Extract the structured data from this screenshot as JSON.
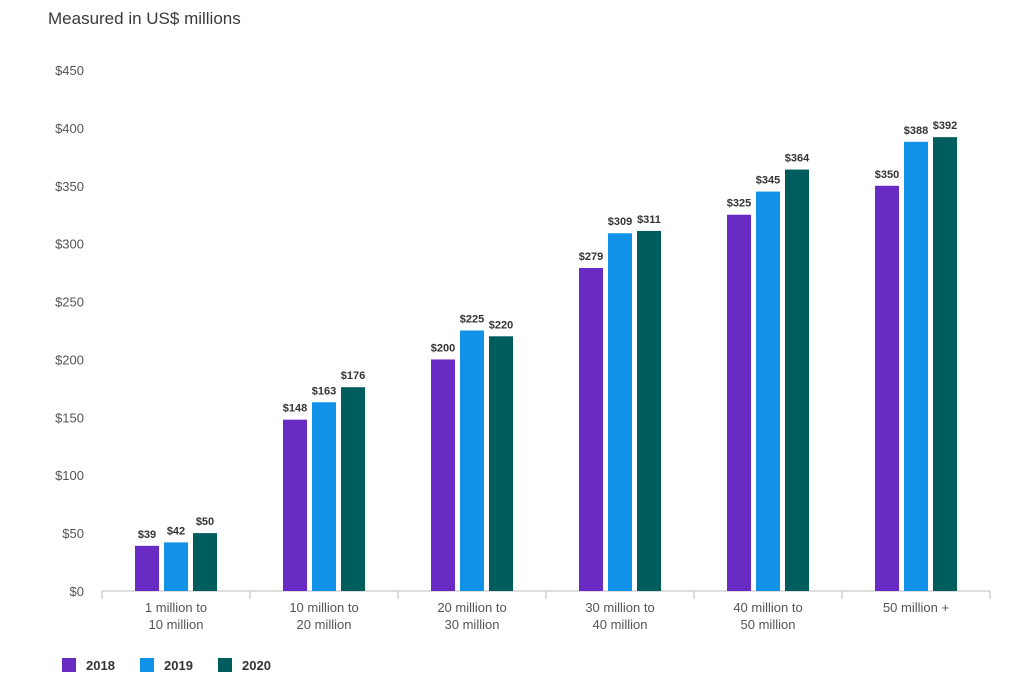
{
  "chart_data": {
    "type": "bar",
    "subtitle": "Measured in US$ millions",
    "categories": [
      [
        "1 million to",
        "10 million"
      ],
      [
        "10 million to",
        "20 million"
      ],
      [
        "20 million to",
        "30 million"
      ],
      [
        "30 million to",
        "40 million"
      ],
      [
        "40 million to",
        "50 million"
      ],
      [
        "50 million +"
      ]
    ],
    "series": [
      {
        "name": "2018",
        "color": "#6a2bc4",
        "values": [
          39,
          148,
          200,
          279,
          325,
          350
        ],
        "labels": [
          "$39",
          "$148",
          "$200",
          "$279",
          "$325",
          "$350"
        ]
      },
      {
        "name": "2019",
        "color": "#1192e8",
        "values": [
          42,
          163,
          225,
          309,
          345,
          388
        ],
        "labels": [
          "$42",
          "$163",
          "$225",
          "$309",
          "$345",
          "$388"
        ]
      },
      {
        "name": "2020",
        "color": "#005d5d",
        "values": [
          50,
          176,
          220,
          311,
          364,
          392
        ],
        "labels": [
          "$50",
          "$176",
          "$220",
          "$311",
          "$364",
          "$392"
        ]
      }
    ],
    "ylim": [
      0,
      450
    ],
    "yticks": [
      {
        "value": 0,
        "label": "$0"
      },
      {
        "value": 50,
        "label": "$50"
      },
      {
        "value": 100,
        "label": "$100"
      },
      {
        "value": 150,
        "label": "$150"
      },
      {
        "value": 200,
        "label": "$200"
      },
      {
        "value": 250,
        "label": "$250"
      },
      {
        "value": 300,
        "label": "$300"
      },
      {
        "value": 350,
        "label": "$350"
      },
      {
        "value": 400,
        "label": "$400"
      },
      {
        "value": 450,
        "label": "$450"
      }
    ],
    "grid": false,
    "legend": "bottom-left"
  }
}
